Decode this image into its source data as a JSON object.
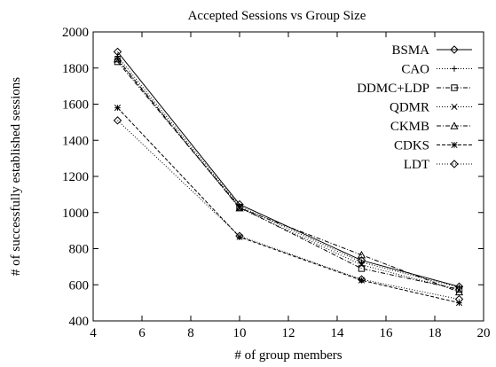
{
  "chart_data": {
    "type": "line",
    "title": "Accepted Sessions vs Group Size",
    "xlabel": "# of group members",
    "ylabel": "# of successfully established sessions",
    "xlim": [
      4,
      20
    ],
    "ylim": [
      400,
      2000
    ],
    "xticks": [
      4,
      6,
      8,
      10,
      12,
      14,
      16,
      18,
      20
    ],
    "yticks": [
      400,
      600,
      800,
      1000,
      1200,
      1400,
      1600,
      1800,
      2000
    ],
    "grid": false,
    "legend_position": "top-right",
    "x": [
      5,
      10,
      15,
      19
    ],
    "series": [
      {
        "name": "BSMA",
        "values": [
          1890,
          1045,
          735,
          590
        ],
        "marker": "diamond",
        "dash": ""
      },
      {
        "name": "CAO",
        "values": [
          1865,
          1035,
          725,
          585
        ],
        "marker": "plus",
        "dash": "1,2"
      },
      {
        "name": "DDMC+LDP",
        "values": [
          1835,
          1030,
          690,
          575
        ],
        "marker": "square",
        "dash": "5,2,1,2"
      },
      {
        "name": "QDMR",
        "values": [
          1845,
          1025,
          710,
          570
        ],
        "marker": "x",
        "dash": "1,2"
      },
      {
        "name": "CKMB",
        "values": [
          1850,
          1025,
          765,
          560
        ],
        "marker": "triangle",
        "dash": "5,2,1,2"
      },
      {
        "name": "CDKS",
        "values": [
          1580,
          865,
          625,
          500
        ],
        "marker": "star",
        "dash": "4,2"
      },
      {
        "name": "LDT",
        "values": [
          1510,
          870,
          630,
          520
        ],
        "marker": "diamond",
        "dash": "1,2"
      }
    ]
  }
}
